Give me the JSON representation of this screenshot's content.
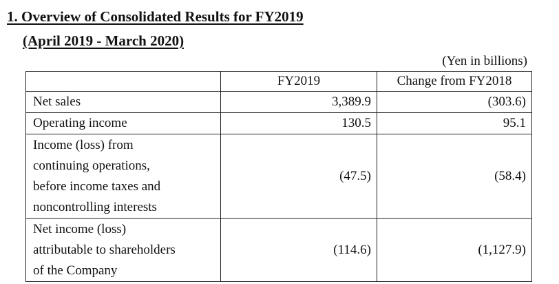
{
  "heading": {
    "title": "1. Overview of Consolidated Results for FY2019",
    "period": "(April 2019 - March 2020)",
    "unit_note": "(Yen in billions)"
  },
  "table": {
    "columns": [
      "",
      "FY2019",
      "Change from FY2018"
    ],
    "rows": [
      {
        "label_lines": [
          "Net sales"
        ],
        "fy2019": "3,389.9",
        "change": "(303.6)"
      },
      {
        "label_lines": [
          "Operating income"
        ],
        "fy2019": "130.5",
        "change": "95.1"
      },
      {
        "label_lines": [
          "Income (loss) from",
          "continuing operations,",
          "before income taxes and",
          "noncontrolling interests"
        ],
        "fy2019": "(47.5)",
        "change": "(58.4)"
      },
      {
        "label_lines": [
          "Net income (loss)",
          "attributable to shareholders",
          "of the Company"
        ],
        "fy2019": "(114.6)",
        "change": "(1,127.9)"
      }
    ]
  }
}
